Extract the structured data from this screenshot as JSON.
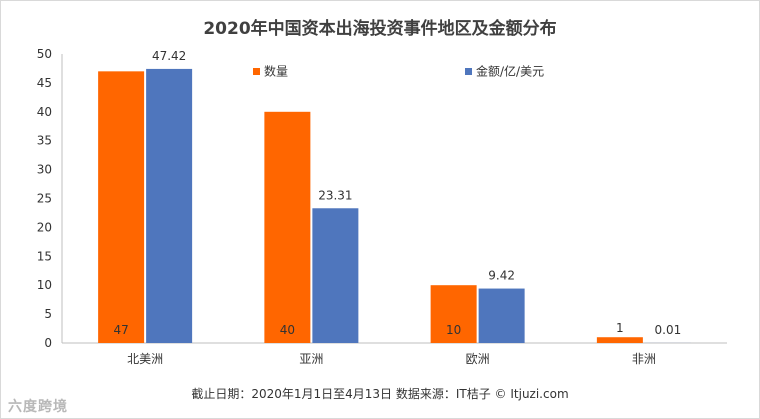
{
  "chart_data": {
    "type": "bar",
    "title": "2020年中国资本出海投资事件地区及金额分布",
    "categories": [
      "北美洲",
      "亚洲",
      "欧洲",
      "非洲"
    ],
    "series": [
      {
        "name": "数量",
        "values": [
          47,
          40,
          10,
          1
        ],
        "color": "#ff6600"
      },
      {
        "name": "金额/亿/美元",
        "values": [
          47.42,
          23.31,
          9.42,
          0.01
        ],
        "color": "#4f76bd"
      }
    ],
    "data_labels": {
      "数量": [
        "47",
        "40",
        "10",
        "1"
      ],
      "金额/亿/美元": [
        "47.42",
        "23.31",
        "9.42",
        "0.01"
      ]
    },
    "yticks": [
      "0",
      "5",
      "10",
      "15",
      "20",
      "25",
      "30",
      "35",
      "40",
      "45",
      "50"
    ],
    "ylim": [
      0,
      50
    ],
    "grid": false,
    "legend": "top-right"
  },
  "footer": "截止日期：2020年1月1日至4月13日      数据来源：IT桔子  © Itjuzi.com",
  "watermark": "六度跨境"
}
